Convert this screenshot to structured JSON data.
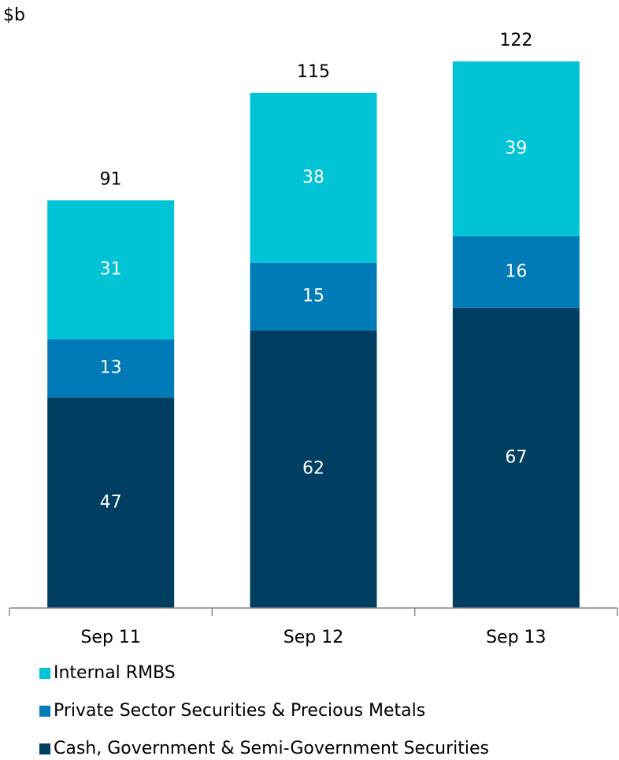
{
  "chart_data": {
    "type": "stacked_bar",
    "y_unit_label": "$b",
    "categories": [
      "Sep 11",
      "Sep 12",
      "Sep 13"
    ],
    "series": [
      {
        "name": "Cash, Government & Semi-Government Securities",
        "color": "#003f62",
        "values": [
          47,
          62,
          67
        ]
      },
      {
        "name": "Private Sector Securities & Precious Metals",
        "color": "#007bb8",
        "values": [
          13,
          15,
          16
        ]
      },
      {
        "name": "Internal RMBS",
        "color": "#00c4d6",
        "values": [
          31,
          38,
          39
        ]
      }
    ],
    "totals": [
      91,
      115,
      122
    ]
  }
}
